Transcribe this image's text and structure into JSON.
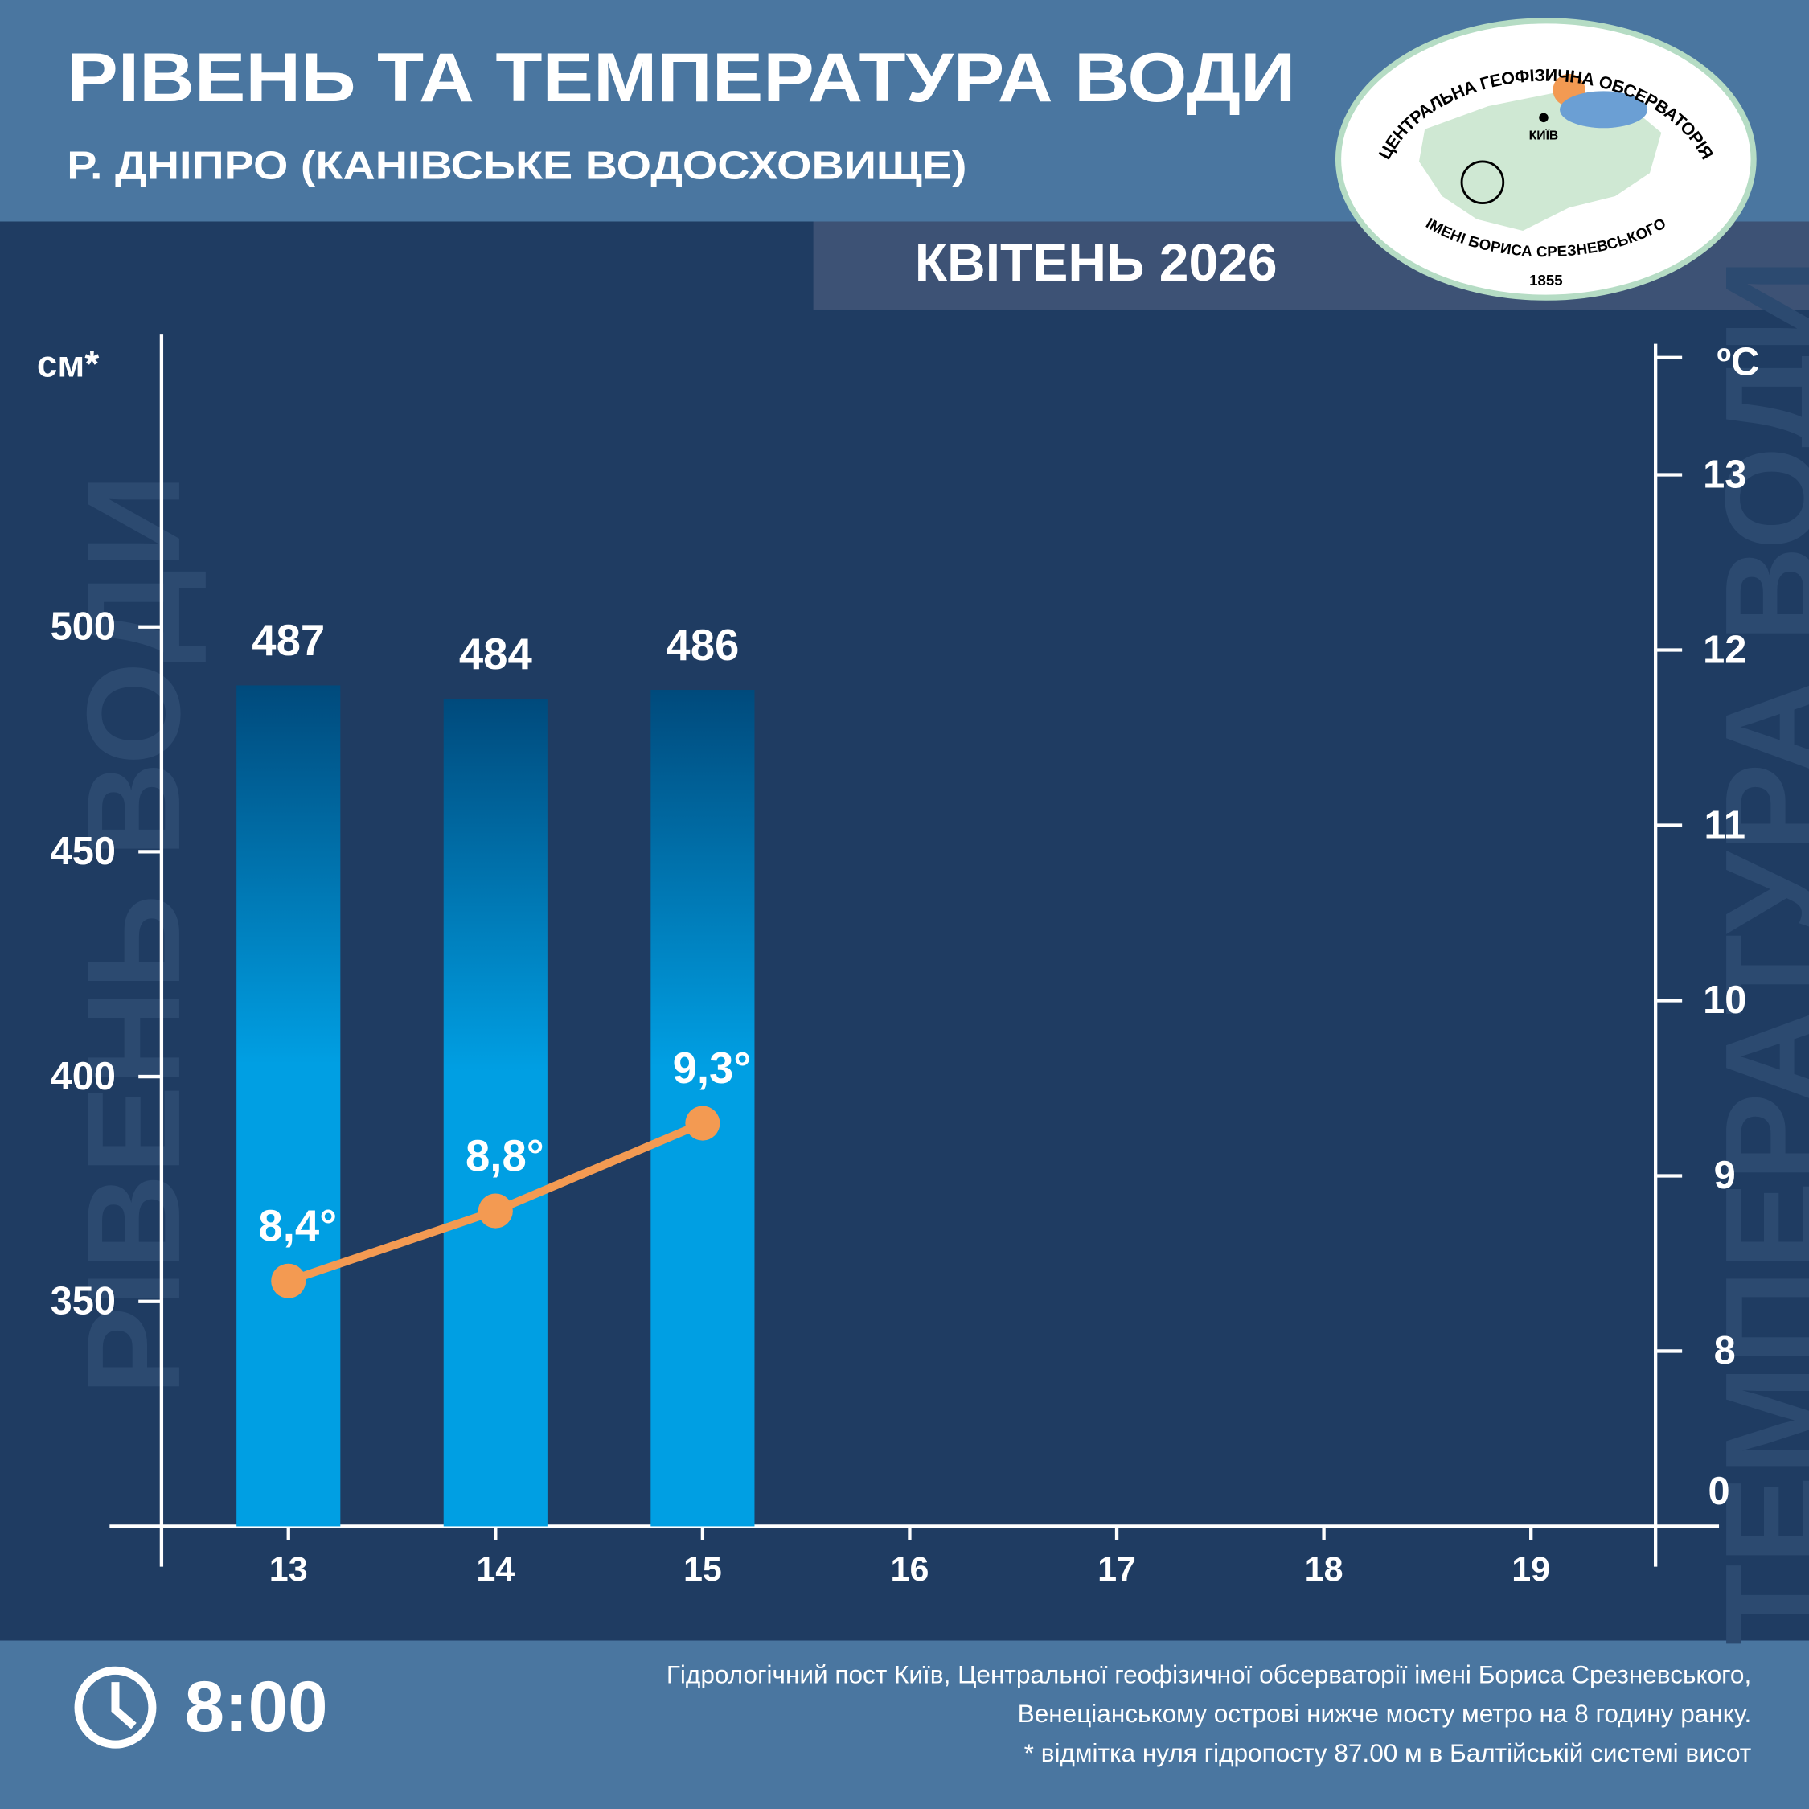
{
  "chart_data": {
    "type": "bar",
    "title": "РІВЕНЬ ТА ТЕМПЕРАТУРА ВОДИ",
    "subtitle": "Р. ДНІПРО (КАНІВСЬКЕ ВОДОСХОВИЩЕ)",
    "period": "КВІТЕНЬ 2026",
    "ylabel": "РІВЕНЬ ВОДИ",
    "y2label": "ТЕМПЕРАТУРА ВОДИ",
    "yunit": "см*",
    "y2unit": "ºC",
    "categories": [
      "13",
      "14",
      "15",
      "16",
      "17",
      "18",
      "19"
    ],
    "series": [
      {
        "type": "bar",
        "color": "#009fe3",
        "values": [
          487,
          484,
          486,
          null,
          null,
          null,
          null
        ]
      },
      {
        "type": "line",
        "axis": "y2",
        "color": "#f39a52",
        "values": [
          8.4,
          8.8,
          9.3,
          null,
          null,
          null,
          null
        ],
        "value_labels": [
          "8,4°",
          "8,8°",
          "9,3°",
          null,
          null,
          null,
          null
        ]
      }
    ],
    "ylim": [
      300,
      565
    ],
    "yticks": [
      350,
      400,
      450,
      500
    ],
    "y2lim": [
      7,
      13.8
    ],
    "y2ticks": [
      8,
      9,
      10,
      11,
      12,
      13
    ],
    "y2_axis_break_label": "0",
    "time": "8:00",
    "notes": [
      "Гідрологічний пост Київ, Центральної геофізичної обсерваторії імені Бориса Срезневського,",
      "Венеціанському острові нижче мосту метро  на 8 годину ранку.",
      "* відмітка нуля гідропосту 87.00 м в Балтійській системі висот"
    ]
  },
  "logo": {
    "top": "ЦЕНТРАЛЬНА ГЕОФІЗИЧНА ОБСЕРВАТОРІЯ",
    "bottom": "ІМЕНІ БОРИСА СРЕЗНЕВСЬКОГО",
    "year": "1855",
    "city": "КИЇВ"
  }
}
